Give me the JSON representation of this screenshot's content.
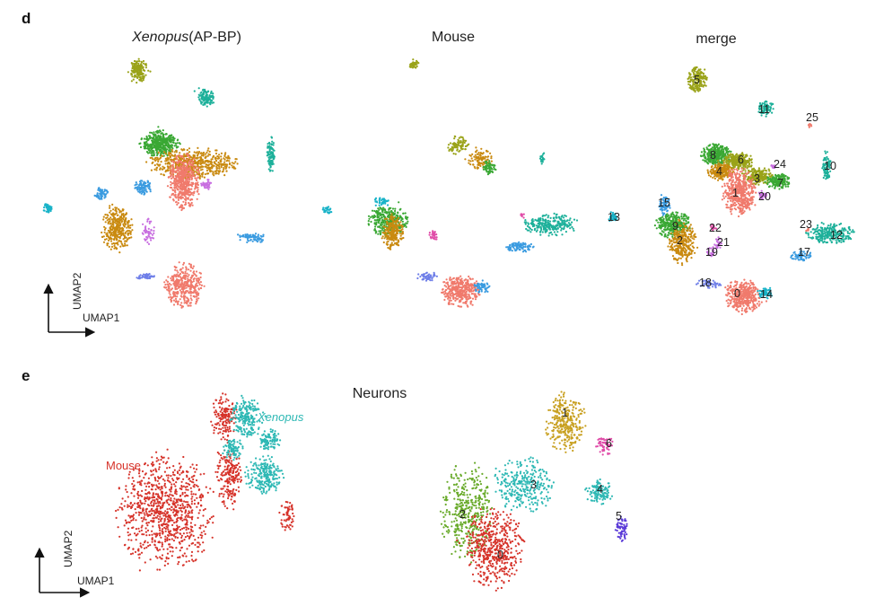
{
  "panels": {
    "d": {
      "letter": "d",
      "titles": {
        "xenopus_italic": "Xenopus",
        "xenopus_rest": "(AP-BP)",
        "mouse": "Mouse",
        "merge": "merge"
      },
      "axis": {
        "x": "UMAP1",
        "y": "UMAP2"
      }
    },
    "e": {
      "letter": "e",
      "title": "Neurons",
      "axis": {
        "x": "UMAP1",
        "y": "UMAP2"
      },
      "species_labels": {
        "mouse": "Mouse",
        "xenopus": "Xenopus"
      }
    }
  },
  "colors": {
    "olive": "#9aa319",
    "green": "#3aa834",
    "orange": "#c98a10",
    "salmon": "#f07a6c",
    "teal": "#1db09a",
    "blue": "#3a9be0",
    "cyan": "#19b3c8",
    "violet": "#c86ee0",
    "periwinkle": "#6e7ee8",
    "pink": "#e04ca8",
    "red": "#d6332a",
    "turq": "#2db8b4",
    "lime": "#6aab2c",
    "gold": "#c8a020",
    "purple": "#5a3ad8"
  },
  "chart_data": [
    {
      "type": "scatter",
      "panel": "d",
      "subtitle": "Xenopus(AP-BP)",
      "xlabel": "UMAP1",
      "ylabel": "UMAP2",
      "clusters": [
        {
          "color": "olive",
          "cx": 154,
          "cy": 78,
          "rx": 9,
          "ry": 11,
          "n": 180
        },
        {
          "color": "teal",
          "cx": 230,
          "cy": 109,
          "rx": 8,
          "ry": 8,
          "n": 120
        },
        {
          "color": "green",
          "cx": 178,
          "cy": 160,
          "rx": 18,
          "ry": 12,
          "n": 400
        },
        {
          "color": "orange",
          "cx": 215,
          "cy": 182,
          "rx": 42,
          "ry": 14,
          "n": 550
        },
        {
          "color": "salmon",
          "cx": 205,
          "cy": 202,
          "rx": 15,
          "ry": 25,
          "n": 500
        },
        {
          "color": "blue",
          "cx": 160,
          "cy": 208,
          "rx": 8,
          "ry": 7,
          "n": 90
        },
        {
          "color": "violet",
          "cx": 230,
          "cy": 206,
          "rx": 5,
          "ry": 5,
          "n": 40
        },
        {
          "color": "blue",
          "cx": 113,
          "cy": 216,
          "rx": 6,
          "ry": 6,
          "n": 60
        },
        {
          "color": "teal",
          "cx": 302,
          "cy": 172,
          "rx": 4,
          "ry": 16,
          "n": 90
        },
        {
          "color": "cyan",
          "cx": 53,
          "cy": 231,
          "rx": 5,
          "ry": 5,
          "n": 40
        },
        {
          "color": "orange",
          "cx": 130,
          "cy": 254,
          "rx": 14,
          "ry": 22,
          "n": 350
        },
        {
          "color": "violet",
          "cx": 165,
          "cy": 257,
          "rx": 6,
          "ry": 12,
          "n": 50
        },
        {
          "color": "blue",
          "cx": 280,
          "cy": 265,
          "rx": 13,
          "ry": 5,
          "n": 70
        },
        {
          "color": "cyan",
          "cx": 364,
          "cy": 234,
          "rx": 5,
          "ry": 4,
          "n": 30
        },
        {
          "color": "periwinkle",
          "cx": 162,
          "cy": 308,
          "rx": 10,
          "ry": 3,
          "n": 40
        },
        {
          "color": "salmon",
          "cx": 205,
          "cy": 318,
          "rx": 18,
          "ry": 20,
          "n": 380
        }
      ]
    },
    {
      "type": "scatter",
      "panel": "d",
      "subtitle": "Mouse",
      "xlabel": "UMAP1",
      "ylabel": "UMAP2",
      "clusters": [
        {
          "color": "olive",
          "cx": 461,
          "cy": 72,
          "rx": 4,
          "ry": 5,
          "n": 40
        },
        {
          "color": "olive",
          "cx": 510,
          "cy": 162,
          "rx": 10,
          "ry": 8,
          "n": 80
        },
        {
          "color": "orange",
          "cx": 535,
          "cy": 178,
          "rx": 14,
          "ry": 10,
          "n": 100
        },
        {
          "color": "green",
          "cx": 545,
          "cy": 187,
          "rx": 6,
          "ry": 7,
          "n": 60
        },
        {
          "color": "teal",
          "cx": 605,
          "cy": 175,
          "rx": 3,
          "ry": 8,
          "n": 20
        },
        {
          "color": "cyan",
          "cx": 425,
          "cy": 225,
          "rx": 9,
          "ry": 5,
          "n": 40
        },
        {
          "color": "green",
          "cx": 432,
          "cy": 246,
          "rx": 18,
          "ry": 14,
          "n": 350
        },
        {
          "color": "orange",
          "cx": 438,
          "cy": 258,
          "rx": 10,
          "ry": 16,
          "n": 220
        },
        {
          "color": "pink",
          "cx": 483,
          "cy": 262,
          "rx": 4,
          "ry": 4,
          "n": 25
        },
        {
          "color": "pink",
          "cx": 582,
          "cy": 240,
          "rx": 2,
          "ry": 3,
          "n": 10
        },
        {
          "color": "teal",
          "cx": 612,
          "cy": 250,
          "rx": 26,
          "ry": 10,
          "n": 250
        },
        {
          "color": "blue",
          "cx": 580,
          "cy": 275,
          "rx": 14,
          "ry": 5,
          "n": 90
        },
        {
          "color": "periwinkle",
          "cx": 476,
          "cy": 308,
          "rx": 12,
          "ry": 4,
          "n": 50
        },
        {
          "color": "salmon",
          "cx": 513,
          "cy": 324,
          "rx": 18,
          "ry": 14,
          "n": 380
        },
        {
          "color": "blue",
          "cx": 537,
          "cy": 320,
          "rx": 7,
          "ry": 6,
          "n": 60
        }
      ]
    },
    {
      "type": "scatter",
      "panel": "d",
      "subtitle": "merge",
      "xlabel": "UMAP1",
      "ylabel": "UMAP2",
      "clusters": [
        {
          "color": "olive",
          "id": "5",
          "cx": 777,
          "cy": 88,
          "rx": 9,
          "ry": 12,
          "n": 180
        },
        {
          "color": "teal",
          "id": "11",
          "cx": 853,
          "cy": 121,
          "rx": 7,
          "ry": 7,
          "n": 90
        },
        {
          "color": "salmon",
          "id": "25",
          "cx": 902,
          "cy": 140,
          "rx": 2,
          "ry": 2,
          "n": 8
        },
        {
          "color": "green",
          "id": "8",
          "cx": 798,
          "cy": 172,
          "rx": 14,
          "ry": 10,
          "n": 300
        },
        {
          "color": "olive",
          "id": "6",
          "cx": 823,
          "cy": 180,
          "rx": 14,
          "ry": 8,
          "n": 250
        },
        {
          "color": "orange",
          "id": "4",
          "cx": 803,
          "cy": 191,
          "rx": 12,
          "ry": 8,
          "n": 200
        },
        {
          "color": "olive",
          "id": "3",
          "cx": 845,
          "cy": 196,
          "rx": 14,
          "ry": 8,
          "n": 200
        },
        {
          "color": "green",
          "id": "7",
          "cx": 867,
          "cy": 202,
          "rx": 12,
          "ry": 7,
          "n": 160
        },
        {
          "color": "salmon",
          "id": "1",
          "cx": 823,
          "cy": 215,
          "rx": 15,
          "ry": 23,
          "n": 480
        },
        {
          "color": "violet",
          "id": "20",
          "cx": 850,
          "cy": 217,
          "rx": 4,
          "ry": 4,
          "n": 30
        },
        {
          "color": "violet",
          "id": "24",
          "cx": 862,
          "cy": 185,
          "rx": 2,
          "ry": 2,
          "n": 10
        },
        {
          "color": "teal",
          "id": "10",
          "cx": 921,
          "cy": 185,
          "rx": 4,
          "ry": 14,
          "n": 90
        },
        {
          "color": "blue",
          "id": "15",
          "cx": 740,
          "cy": 228,
          "rx": 6,
          "ry": 10,
          "n": 80
        },
        {
          "color": "cyan",
          "id": "13",
          "cx": 683,
          "cy": 242,
          "rx": 5,
          "ry": 5,
          "n": 40
        },
        {
          "color": "green",
          "id": "9",
          "cx": 750,
          "cy": 250,
          "rx": 16,
          "ry": 12,
          "n": 300
        },
        {
          "color": "orange",
          "id": "2",
          "cx": 760,
          "cy": 270,
          "rx": 13,
          "ry": 20,
          "n": 300
        },
        {
          "color": "pink",
          "id": "22",
          "cx": 795,
          "cy": 253,
          "rx": 3,
          "ry": 3,
          "n": 15
        },
        {
          "color": "violet",
          "id": "21",
          "cx": 800,
          "cy": 270,
          "rx": 4,
          "ry": 6,
          "n": 25
        },
        {
          "color": "violet",
          "id": "19",
          "cx": 792,
          "cy": 280,
          "rx": 4,
          "ry": 5,
          "n": 25
        },
        {
          "color": "salmon",
          "id": "23",
          "cx": 900,
          "cy": 256,
          "rx": 2,
          "ry": 2,
          "n": 6
        },
        {
          "color": "teal",
          "id": "12",
          "cx": 925,
          "cy": 260,
          "rx": 22,
          "ry": 10,
          "n": 250
        },
        {
          "color": "blue",
          "id": "17",
          "cx": 893,
          "cy": 285,
          "rx": 10,
          "ry": 5,
          "n": 60
        },
        {
          "color": "periwinkle",
          "id": "18",
          "cx": 790,
          "cy": 316,
          "rx": 12,
          "ry": 4,
          "n": 50
        },
        {
          "color": "salmon",
          "id": "0",
          "cx": 828,
          "cy": 330,
          "rx": 17,
          "ry": 16,
          "n": 380
        },
        {
          "color": "cyan",
          "id": "14",
          "cx": 853,
          "cy": 326,
          "rx": 7,
          "ry": 6,
          "n": 60
        }
      ],
      "cluster_labels": [
        {
          "text": "5",
          "x": 773,
          "y": 93
        },
        {
          "text": "11",
          "x": 845,
          "y": 126
        },
        {
          "text": "25",
          "x": 898,
          "y": 135
        },
        {
          "text": "8",
          "x": 791,
          "y": 177
        },
        {
          "text": "6",
          "x": 822,
          "y": 182
        },
        {
          "text": "24",
          "x": 862,
          "y": 187
        },
        {
          "text": "10",
          "x": 918,
          "y": 189
        },
        {
          "text": "4",
          "x": 798,
          "y": 195
        },
        {
          "text": "3",
          "x": 840,
          "y": 203
        },
        {
          "text": "7",
          "x": 866,
          "y": 208
        },
        {
          "text": "1",
          "x": 816,
          "y": 219
        },
        {
          "text": "20",
          "x": 845,
          "y": 223
        },
        {
          "text": "15",
          "x": 733,
          "y": 230
        },
        {
          "text": "13",
          "x": 677,
          "y": 246
        },
        {
          "text": "9",
          "x": 749,
          "y": 256
        },
        {
          "text": "22",
          "x": 790,
          "y": 258
        },
        {
          "text": "23",
          "x": 891,
          "y": 254
        },
        {
          "text": "12",
          "x": 925,
          "y": 266
        },
        {
          "text": "2",
          "x": 754,
          "y": 272
        },
        {
          "text": "21",
          "x": 799,
          "y": 274
        },
        {
          "text": "19",
          "x": 786,
          "y": 285
        },
        {
          "text": "17",
          "x": 889,
          "y": 285
        },
        {
          "text": "18",
          "x": 779,
          "y": 319
        },
        {
          "text": "0",
          "x": 818,
          "y": 331
        },
        {
          "text": "14",
          "x": 847,
          "y": 332
        }
      ]
    },
    {
      "type": "scatter",
      "panel": "e",
      "subtitle": "Neurons",
      "xlabel": "UMAP1",
      "ylabel": "UMAP2",
      "series": [
        {
          "name": "Mouse",
          "color": "red"
        },
        {
          "name": "Xenopus",
          "color": "turq"
        }
      ],
      "clusters": [
        {
          "color": "red",
          "cx": 185,
          "cy": 570,
          "rx": 45,
          "ry": 55,
          "n": 900
        },
        {
          "color": "red",
          "cx": 255,
          "cy": 530,
          "rx": 12,
          "ry": 30,
          "n": 200
        },
        {
          "color": "red",
          "cx": 250,
          "cy": 465,
          "rx": 12,
          "ry": 22,
          "n": 160
        },
        {
          "color": "red",
          "cx": 320,
          "cy": 575,
          "rx": 7,
          "ry": 14,
          "n": 60
        },
        {
          "color": "turq",
          "cx": 275,
          "cy": 465,
          "rx": 15,
          "ry": 18,
          "n": 200
        },
        {
          "color": "turq",
          "cx": 300,
          "cy": 490,
          "rx": 10,
          "ry": 10,
          "n": 100
        },
        {
          "color": "turq",
          "cx": 295,
          "cy": 530,
          "rx": 18,
          "ry": 18,
          "n": 220
        },
        {
          "color": "turq",
          "cx": 260,
          "cy": 500,
          "rx": 10,
          "ry": 10,
          "n": 80
        }
      ]
    },
    {
      "type": "scatter",
      "panel": "e",
      "subtitle": "Neurons",
      "xlabel": "UMAP1",
      "ylabel": "UMAP2",
      "clusters": [
        {
          "color": "gold",
          "id": "1",
          "cx": 630,
          "cy": 470,
          "rx": 18,
          "ry": 28,
          "n": 300
        },
        {
          "color": "pink",
          "id": "6",
          "cx": 674,
          "cy": 497,
          "rx": 8,
          "ry": 10,
          "n": 60
        },
        {
          "color": "turq",
          "id": "3",
          "cx": 585,
          "cy": 540,
          "rx": 28,
          "ry": 25,
          "n": 300
        },
        {
          "color": "turq",
          "id": "4",
          "cx": 668,
          "cy": 548,
          "rx": 13,
          "ry": 12,
          "n": 120
        },
        {
          "color": "purple",
          "id": "5",
          "cx": 693,
          "cy": 590,
          "rx": 6,
          "ry": 12,
          "n": 60
        },
        {
          "color": "lime",
          "id": "2",
          "cx": 520,
          "cy": 570,
          "rx": 25,
          "ry": 45,
          "n": 400
        },
        {
          "color": "red",
          "id": "0",
          "cx": 550,
          "cy": 610,
          "rx": 28,
          "ry": 38,
          "n": 500
        }
      ],
      "cluster_labels": [
        {
          "text": "1",
          "x": 626,
          "y": 464
        },
        {
          "text": "6",
          "x": 675,
          "y": 498
        },
        {
          "text": "3",
          "x": 591,
          "y": 544
        },
        {
          "text": "4",
          "x": 665,
          "y": 549
        },
        {
          "text": "2",
          "x": 512,
          "y": 577
        },
        {
          "text": "5",
          "x": 686,
          "y": 579
        },
        {
          "text": "0",
          "x": 554,
          "y": 622
        }
      ]
    }
  ]
}
